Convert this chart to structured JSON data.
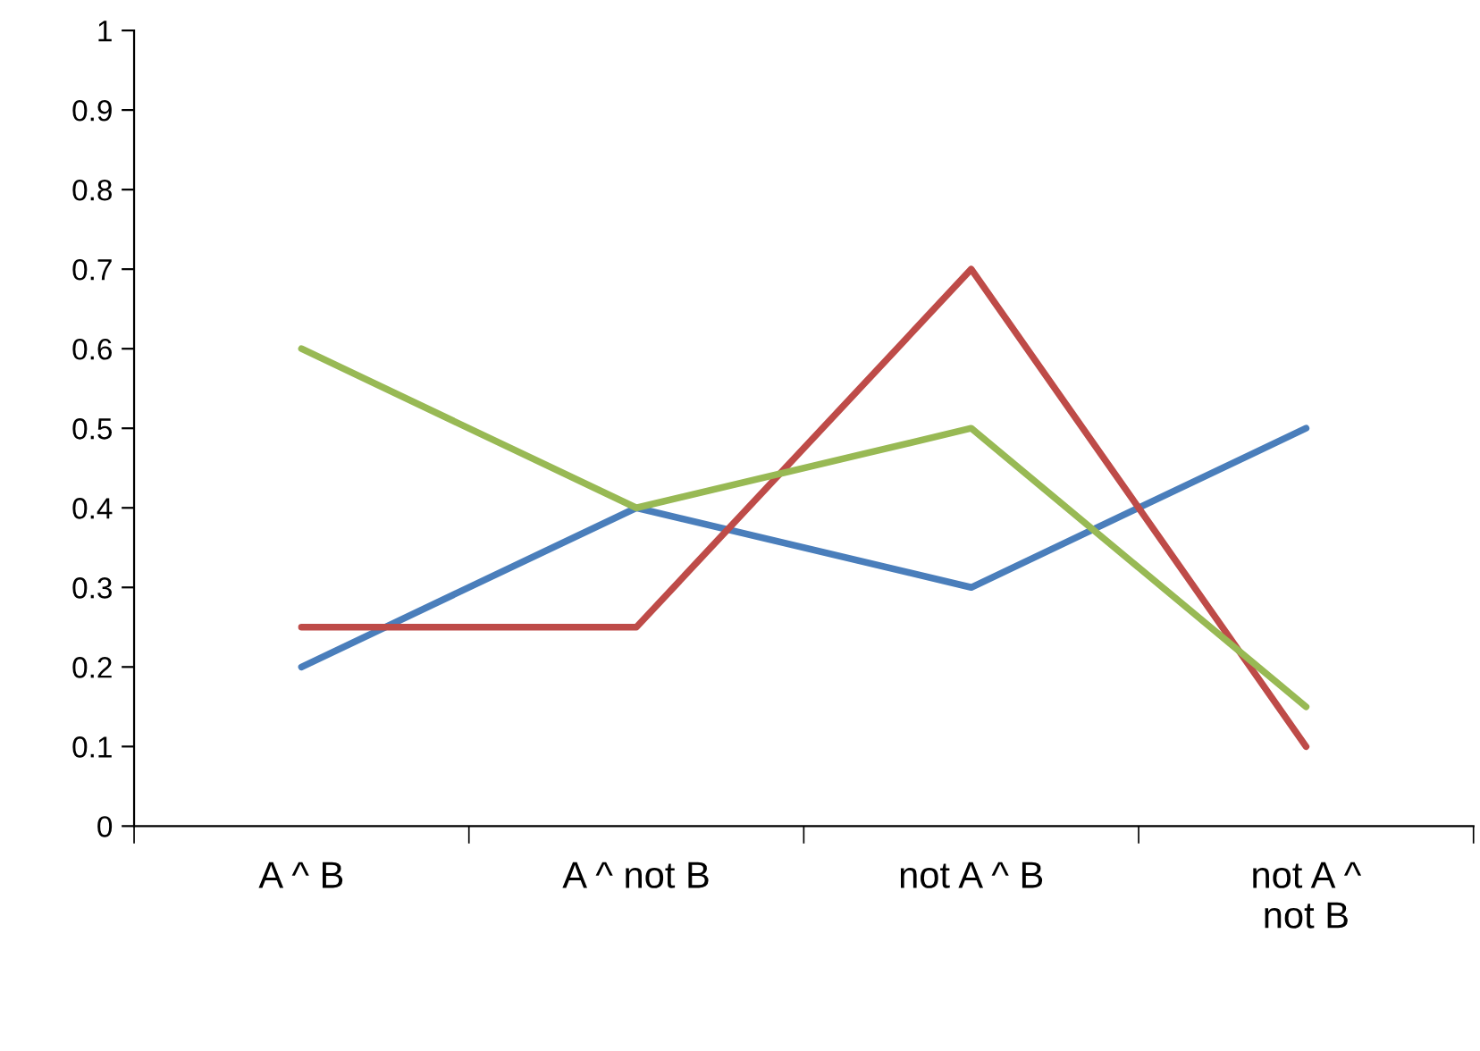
{
  "chart_data": {
    "type": "line",
    "categories": [
      "A ^ B",
      "A ^ not B",
      "not A ^ B",
      "not A ^ not B"
    ],
    "series": [
      {
        "color": "#4a7ebb",
        "values": [
          0.2,
          0.4,
          0.3,
          0.5
        ]
      },
      {
        "color": "#be4b48",
        "values": [
          0.25,
          0.25,
          0.7,
          0.1
        ]
      },
      {
        "color": "#98b954",
        "values": [
          0.6,
          0.4,
          0.5,
          0.15
        ]
      }
    ],
    "ylim": [
      0,
      1
    ],
    "yticks": [
      0,
      0.1,
      0.2,
      0.3,
      0.4,
      0.5,
      0.6,
      0.7,
      0.8,
      0.9,
      1
    ],
    "grid": false,
    "marker": "none",
    "line_style": "solid"
  }
}
